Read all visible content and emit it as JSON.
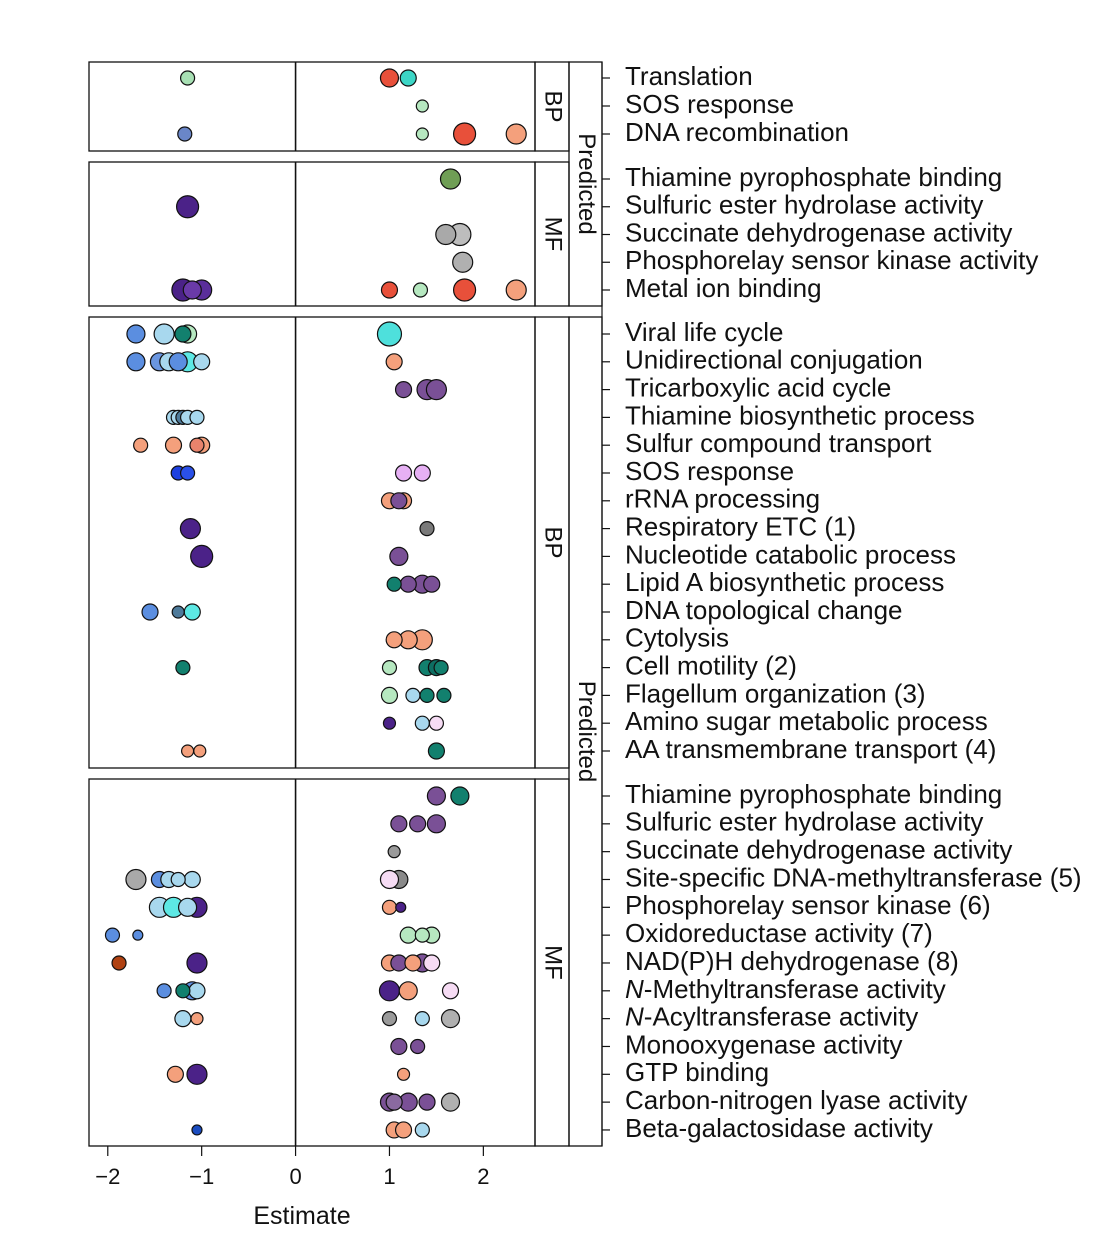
{
  "chart_data": {
    "type": "scatter",
    "xlabel": "Estimate",
    "xticks": [
      -2,
      -1,
      0,
      1,
      2
    ],
    "xtick_labels": [
      "−2",
      "−1",
      "0",
      "1",
      "2"
    ],
    "xlim": [
      -2.2,
      2.55
    ],
    "outer_strips": [
      {
        "label": "Predicted",
        "groups": [
          "BP1",
          "MF1"
        ]
      },
      {
        "label": "Predicted",
        "groups": [
          "BP2",
          "MF2"
        ]
      }
    ],
    "groups": [
      {
        "id": "BP1",
        "strip": "BP",
        "terms": [
          "Translation",
          "SOS response",
          "DNA recombination"
        ],
        "points": [
          {
            "t": 0,
            "x": -1.15,
            "s": 7,
            "c": "#a8e0b4"
          },
          {
            "t": 0,
            "x": 1.0,
            "s": 9,
            "c": "#e8503a"
          },
          {
            "t": 0,
            "x": 1.2,
            "s": 8,
            "c": "#3cd6c6"
          },
          {
            "t": 1,
            "x": 1.35,
            "s": 6,
            "c": "#b6e8c0"
          },
          {
            "t": 2,
            "x": -1.18,
            "s": 7,
            "c": "#6a86c8"
          },
          {
            "t": 2,
            "x": 1.35,
            "s": 6,
            "c": "#b6e8c0"
          },
          {
            "t": 2,
            "x": 1.8,
            "s": 11,
            "c": "#e8503a"
          },
          {
            "t": 2,
            "x": 2.35,
            "s": 10,
            "c": "#f4a07c"
          }
        ]
      },
      {
        "id": "MF1",
        "strip": "MF",
        "terms": [
          "Thiamine pyrophosphate binding",
          "Sulfuric ester hydrolase activity",
          "Succinate dehydrogenase activity",
          "Phosphorelay sensor kinase activity",
          "Metal ion binding"
        ],
        "points": [
          {
            "t": 0,
            "x": 1.65,
            "s": 10,
            "c": "#6f9e55"
          },
          {
            "t": 1,
            "x": -1.15,
            "s": 11,
            "c": "#4b2288"
          },
          {
            "t": 2,
            "x": 1.6,
            "s": 10,
            "c": "#a9a9a9"
          },
          {
            "t": 2,
            "x": 1.75,
            "s": 11,
            "c": "#bdbdbd"
          },
          {
            "t": 3,
            "x": 1.78,
            "s": 10,
            "c": "#b0b0b0"
          },
          {
            "t": 4,
            "x": -1.2,
            "s": 11,
            "c": "#4b2288"
          },
          {
            "t": 4,
            "x": -1.0,
            "s": 10,
            "c": "#5a2e9a"
          },
          {
            "t": 4,
            "x": -1.1,
            "s": 9,
            "c": "#6a3aa8"
          },
          {
            "t": 4,
            "x": 1.0,
            "s": 8,
            "c": "#e8503a"
          },
          {
            "t": 4,
            "x": 1.33,
            "s": 7,
            "c": "#b6e8c0"
          },
          {
            "t": 4,
            "x": 1.8,
            "s": 11,
            "c": "#e8503a"
          },
          {
            "t": 4,
            "x": 2.35,
            "s": 10,
            "c": "#f4a07c"
          }
        ]
      },
      {
        "id": "BP2",
        "strip": "BP",
        "terms": [
          "Viral life cycle",
          "Unidirectional conjugation",
          "Tricarboxylic acid cycle",
          "Thiamine biosynthetic process",
          "Sulfur compound transport",
          "SOS response",
          "rRNA processing",
          "Respiratory ETC (1)",
          "Nucleotide catabolic process",
          "Lipid A biosynthetic process",
          "DNA topological change",
          "Cytolysis",
          "Cell motility (2)",
          "Flagellum organization (3)",
          "Amino sugar metabolic process",
          "AA transmembrane transport (4)"
        ],
        "points": [
          {
            "t": 0,
            "x": -1.7,
            "s": 9,
            "c": "#5b8ee0"
          },
          {
            "t": 0,
            "x": -1.4,
            "s": 10,
            "c": "#a8d8ee"
          },
          {
            "t": 0,
            "x": -1.15,
            "s": 9,
            "c": "#b6e8c0"
          },
          {
            "t": 0,
            "x": -1.2,
            "s": 8,
            "c": "#12806e"
          },
          {
            "t": 0,
            "x": 1.0,
            "s": 12,
            "c": "#4ee0dc"
          },
          {
            "t": 1,
            "x": -1.7,
            "s": 9,
            "c": "#5b8ee0"
          },
          {
            "t": 1,
            "x": -1.45,
            "s": 9,
            "c": "#6a96e0"
          },
          {
            "t": 1,
            "x": -1.35,
            "s": 9,
            "c": "#a8d8ee"
          },
          {
            "t": 1,
            "x": -1.25,
            "s": 9,
            "c": "#5b8ee0"
          },
          {
            "t": 1,
            "x": -1.15,
            "s": 10,
            "c": "#5de8e4"
          },
          {
            "t": 1,
            "x": -1.0,
            "s": 8,
            "c": "#a8d8ee"
          },
          {
            "t": 1,
            "x": 1.05,
            "s": 8,
            "c": "#f4a07c"
          },
          {
            "t": 2,
            "x": 1.15,
            "s": 8,
            "c": "#7a5096"
          },
          {
            "t": 2,
            "x": 1.4,
            "s": 10,
            "c": "#7a5096"
          },
          {
            "t": 2,
            "x": 1.5,
            "s": 10,
            "c": "#7a5096"
          },
          {
            "t": 3,
            "x": -1.3,
            "s": 7,
            "c": "#a8d8ee"
          },
          {
            "t": 3,
            "x": -1.25,
            "s": 7,
            "c": "#a8d8ee"
          },
          {
            "t": 3,
            "x": -1.2,
            "s": 7,
            "c": "#4e7a9a"
          },
          {
            "t": 3,
            "x": -1.15,
            "s": 7,
            "c": "#a8d8ee"
          },
          {
            "t": 3,
            "x": -1.05,
            "s": 7,
            "c": "#a8d8ee"
          },
          {
            "t": 4,
            "x": -1.65,
            "s": 7,
            "c": "#f4a07c"
          },
          {
            "t": 4,
            "x": -1.3,
            "s": 8,
            "c": "#f4a07c"
          },
          {
            "t": 4,
            "x": -1.0,
            "s": 8,
            "c": "#f4a07c"
          },
          {
            "t": 4,
            "x": -1.05,
            "s": 7,
            "c": "#e8836c"
          },
          {
            "t": 5,
            "x": -1.25,
            "s": 7,
            "c": "#1e40e0"
          },
          {
            "t": 5,
            "x": -1.15,
            "s": 7,
            "c": "#2a50e8"
          },
          {
            "t": 5,
            "x": 1.15,
            "s": 8,
            "c": "#e6b0f4"
          },
          {
            "t": 5,
            "x": 1.35,
            "s": 8,
            "c": "#e6b0f4"
          },
          {
            "t": 6,
            "x": 1.0,
            "s": 8,
            "c": "#f4a07c"
          },
          {
            "t": 6,
            "x": 1.15,
            "s": 8,
            "c": "#f4a07c"
          },
          {
            "t": 6,
            "x": 1.1,
            "s": 8,
            "c": "#7a5096"
          },
          {
            "t": 7,
            "x": -1.12,
            "s": 10,
            "c": "#4b2288"
          },
          {
            "t": 7,
            "x": 1.4,
            "s": 7,
            "c": "#7a7a7a"
          },
          {
            "t": 8,
            "x": -1.0,
            "s": 11,
            "c": "#4b2288"
          },
          {
            "t": 8,
            "x": 1.1,
            "s": 9,
            "c": "#7a5096"
          },
          {
            "t": 9,
            "x": 1.05,
            "s": 7,
            "c": "#12806e"
          },
          {
            "t": 9,
            "x": 1.2,
            "s": 8,
            "c": "#7a5096"
          },
          {
            "t": 9,
            "x": 1.35,
            "s": 9,
            "c": "#7a5096"
          },
          {
            "t": 9,
            "x": 1.45,
            "s": 8,
            "c": "#7a5096"
          },
          {
            "t": 10,
            "x": -1.55,
            "s": 8,
            "c": "#5b8ee0"
          },
          {
            "t": 10,
            "x": -1.25,
            "s": 6,
            "c": "#4e7a9a"
          },
          {
            "t": 10,
            "x": -1.1,
            "s": 8,
            "c": "#5de8e4"
          },
          {
            "t": 11,
            "x": 1.05,
            "s": 8,
            "c": "#f4a07c"
          },
          {
            "t": 11,
            "x": 1.2,
            "s": 9,
            "c": "#f4a07c"
          },
          {
            "t": 11,
            "x": 1.35,
            "s": 10,
            "c": "#f4a07c"
          },
          {
            "t": 12,
            "x": -1.2,
            "s": 7,
            "c": "#12806e"
          },
          {
            "t": 12,
            "x": 1.0,
            "s": 7,
            "c": "#b6e8c0"
          },
          {
            "t": 12,
            "x": 1.4,
            "s": 8,
            "c": "#12806e"
          },
          {
            "t": 12,
            "x": 1.5,
            "s": 8,
            "c": "#0e6e62"
          },
          {
            "t": 12,
            "x": 1.55,
            "s": 7,
            "c": "#12806e"
          },
          {
            "t": 13,
            "x": 1.0,
            "s": 8,
            "c": "#b6e8c0"
          },
          {
            "t": 13,
            "x": 1.25,
            "s": 7,
            "c": "#a8d8ee"
          },
          {
            "t": 13,
            "x": 1.4,
            "s": 7,
            "c": "#12806e"
          },
          {
            "t": 13,
            "x": 1.58,
            "s": 7,
            "c": "#12806e"
          },
          {
            "t": 14,
            "x": 1.0,
            "s": 6,
            "c": "#4b2288"
          },
          {
            "t": 14,
            "x": 1.35,
            "s": 7,
            "c": "#a8d8ee"
          },
          {
            "t": 14,
            "x": 1.5,
            "s": 7,
            "c": "#f6dcf4"
          },
          {
            "t": 15,
            "x": -1.15,
            "s": 6,
            "c": "#f4a07c"
          },
          {
            "t": 15,
            "x": -1.02,
            "s": 6,
            "c": "#f4a07c"
          },
          {
            "t": 15,
            "x": 1.5,
            "s": 8,
            "c": "#12806e"
          }
        ]
      },
      {
        "id": "MF2",
        "strip": "MF",
        "terms": [
          "Thiamine pyrophosphate binding",
          "Sulfuric ester hydrolase activity",
          "Succinate dehydrogenase activity",
          "Site-specific DNA-methyltransferase (5)",
          "Phosphorelay sensor kinase (6)",
          "Oxidoreductase activity (7)",
          "NAD(P)H dehydrogenase (8)",
          "N-Methyltransferase activity",
          "N-Acyltransferase activity",
          "Monooxygenase activity",
          "GTP binding",
          "Carbon-nitrogen lyase activity",
          "Beta-galactosidase activity"
        ],
        "points": [
          {
            "t": 0,
            "x": 1.5,
            "s": 9,
            "c": "#7a5096"
          },
          {
            "t": 0,
            "x": 1.75,
            "s": 9,
            "c": "#12806e"
          },
          {
            "t": 1,
            "x": 1.1,
            "s": 8,
            "c": "#7a5096"
          },
          {
            "t": 1,
            "x": 1.3,
            "s": 8,
            "c": "#7a5096"
          },
          {
            "t": 1,
            "x": 1.5,
            "s": 9,
            "c": "#7a5096"
          },
          {
            "t": 2,
            "x": 1.05,
            "s": 6,
            "c": "#9a9a9a"
          },
          {
            "t": 3,
            "x": -1.7,
            "s": 10,
            "c": "#a9a9a9"
          },
          {
            "t": 3,
            "x": -1.45,
            "s": 8,
            "c": "#5b8ee0"
          },
          {
            "t": 3,
            "x": -1.35,
            "s": 8,
            "c": "#a8d8ee"
          },
          {
            "t": 3,
            "x": -1.25,
            "s": 7,
            "c": "#a8d8ee"
          },
          {
            "t": 3,
            "x": -1.1,
            "s": 8,
            "c": "#a8d8ee"
          },
          {
            "t": 3,
            "x": 1.1,
            "s": 9,
            "c": "#8a8a8a"
          },
          {
            "t": 3,
            "x": 1.0,
            "s": 9,
            "c": "#f6dcf4"
          },
          {
            "t": 4,
            "x": -1.45,
            "s": 10,
            "c": "#a8d8ee"
          },
          {
            "t": 4,
            "x": -1.3,
            "s": 10,
            "c": "#5de8e4"
          },
          {
            "t": 4,
            "x": -1.15,
            "s": 9,
            "c": "#a8d8ee"
          },
          {
            "t": 4,
            "x": -1.05,
            "s": 10,
            "c": "#4b2288"
          },
          {
            "t": 4,
            "x": 1.0,
            "s": 7,
            "c": "#f4a07c"
          },
          {
            "t": 4,
            "x": 1.12,
            "s": 5,
            "c": "#4b2288"
          },
          {
            "t": 5,
            "x": -1.95,
            "s": 7,
            "c": "#5b8ee0"
          },
          {
            "t": 5,
            "x": -1.68,
            "s": 5,
            "c": "#5b8ee0"
          },
          {
            "t": 5,
            "x": 1.2,
            "s": 8,
            "c": "#b6e8c0"
          },
          {
            "t": 5,
            "x": 1.45,
            "s": 8,
            "c": "#b6e8c0"
          },
          {
            "t": 5,
            "x": 1.35,
            "s": 7,
            "c": "#b6e8c0"
          },
          {
            "t": 6,
            "x": -1.88,
            "s": 7,
            "c": "#b04212"
          },
          {
            "t": 6,
            "x": -1.05,
            "s": 10,
            "c": "#4b2288"
          },
          {
            "t": 6,
            "x": 1.0,
            "s": 8,
            "c": "#f4a07c"
          },
          {
            "t": 6,
            "x": 1.1,
            "s": 8,
            "c": "#7a5096"
          },
          {
            "t": 6,
            "x": 1.25,
            "s": 8,
            "c": "#f4a07c"
          },
          {
            "t": 6,
            "x": 1.35,
            "s": 9,
            "c": "#7a5096"
          },
          {
            "t": 6,
            "x": 1.45,
            "s": 8,
            "c": "#f6dcf4"
          },
          {
            "t": 7,
            "x": -1.4,
            "s": 7,
            "c": "#5b8ee0"
          },
          {
            "t": 7,
            "x": -1.2,
            "s": 7,
            "c": "#12806e"
          },
          {
            "t": 7,
            "x": -1.1,
            "s": 9,
            "c": "#5b8ee0"
          },
          {
            "t": 7,
            "x": -1.05,
            "s": 8,
            "c": "#a8d8ee"
          },
          {
            "t": 7,
            "x": 1.0,
            "s": 10,
            "c": "#4b2288"
          },
          {
            "t": 7,
            "x": 1.2,
            "s": 9,
            "c": "#f4a07c"
          },
          {
            "t": 7,
            "x": 1.65,
            "s": 8,
            "c": "#f6dcf4"
          },
          {
            "t": 8,
            "x": -1.2,
            "s": 8,
            "c": "#a8d8ee"
          },
          {
            "t": 8,
            "x": -1.05,
            "s": 6,
            "c": "#f4a07c"
          },
          {
            "t": 8,
            "x": 1.0,
            "s": 7,
            "c": "#9a9a9a"
          },
          {
            "t": 8,
            "x": 1.35,
            "s": 7,
            "c": "#a8d8ee"
          },
          {
            "t": 8,
            "x": 1.65,
            "s": 9,
            "c": "#b0b0b0"
          },
          {
            "t": 9,
            "x": 1.1,
            "s": 8,
            "c": "#7a5096"
          },
          {
            "t": 9,
            "x": 1.3,
            "s": 7,
            "c": "#7a5096"
          },
          {
            "t": 10,
            "x": -1.28,
            "s": 8,
            "c": "#f4a07c"
          },
          {
            "t": 10,
            "x": -1.05,
            "s": 10,
            "c": "#4b2288"
          },
          {
            "t": 10,
            "x": 1.15,
            "s": 6,
            "c": "#f4a07c"
          },
          {
            "t": 11,
            "x": 1.0,
            "s": 9,
            "c": "#7a5096"
          },
          {
            "t": 11,
            "x": 1.2,
            "s": 9,
            "c": "#7a5096"
          },
          {
            "t": 11,
            "x": 1.4,
            "s": 8,
            "c": "#7a5096"
          },
          {
            "t": 11,
            "x": 1.65,
            "s": 9,
            "c": "#b0b0b0"
          },
          {
            "t": 11,
            "x": 1.05,
            "s": 8,
            "c": "#8a6aa0"
          },
          {
            "t": 12,
            "x": -1.05,
            "s": 5,
            "c": "#1a4cc0"
          },
          {
            "t": 12,
            "x": 1.05,
            "s": 8,
            "c": "#f4a07c"
          },
          {
            "t": 12,
            "x": 1.15,
            "s": 8,
            "c": "#f4a07c"
          },
          {
            "t": 12,
            "x": 1.35,
            "s": 7,
            "c": "#a8d8ee"
          }
        ]
      }
    ]
  }
}
